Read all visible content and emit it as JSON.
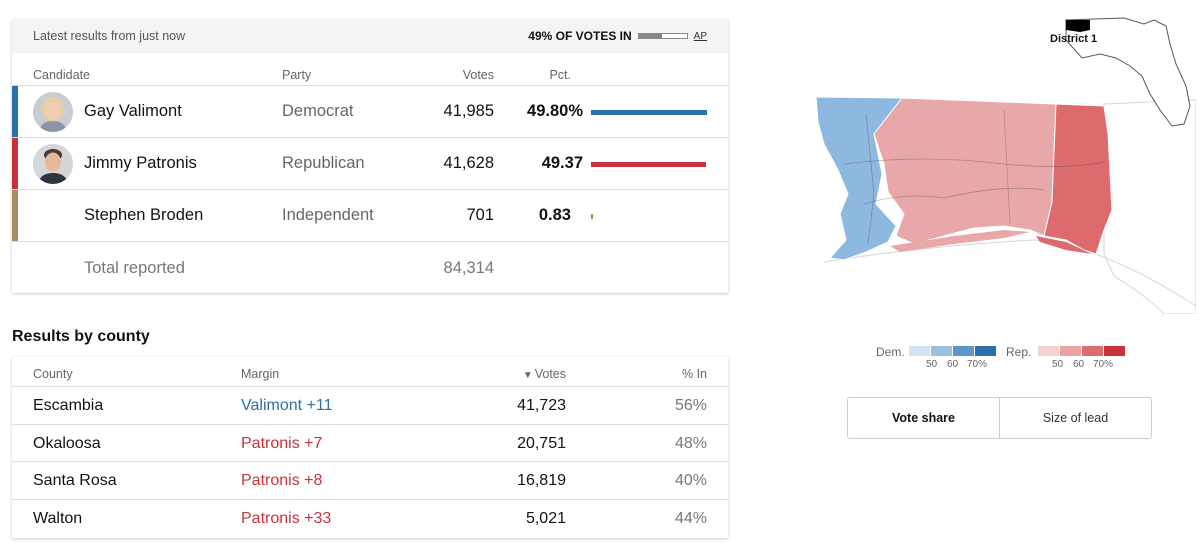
{
  "results": {
    "latest_label": "Latest results from just now",
    "reporting_label": "49% OF VOTES IN",
    "reporting_fraction": 0.49,
    "source_label": "AP",
    "headers": {
      "candidate": "Candidate",
      "party": "Party",
      "votes": "Votes",
      "pct": "Pct."
    },
    "candidates": [
      {
        "name": "Gay Valimont",
        "party": "Democrat",
        "votes": "41,985",
        "pct": "49.80%",
        "pct_value": 49.8,
        "color": "#2d6fa7"
      },
      {
        "name": "Jimmy Patronis",
        "party": "Republican",
        "votes": "41,628",
        "pct": "49.37",
        "pct_value": 49.37,
        "color": "#c8323a"
      },
      {
        "name": "Stephen Broden",
        "party": "Independent",
        "votes": "701",
        "pct": "0.83",
        "pct_value": 0.83,
        "color": "#a98d5e"
      }
    ],
    "total_label": "Total reported",
    "total_votes": "84,314"
  },
  "county": {
    "title": "Results by county",
    "headers": {
      "county": "County",
      "margin": "Margin",
      "votes_arrow": "▼",
      "votes": "Votes",
      "pct_in": "% In"
    },
    "rows": [
      {
        "county": "Escambia",
        "margin": "Valimont +11",
        "party": "dem",
        "votes": "41,723",
        "pct_in": "56%"
      },
      {
        "county": "Okaloosa",
        "margin": "Patronis +7",
        "party": "rep",
        "votes": "20,751",
        "pct_in": "48%"
      },
      {
        "county": "Santa Rosa",
        "margin": "Patronis +8",
        "party": "rep",
        "votes": "16,819",
        "pct_in": "40%"
      },
      {
        "county": "Walton",
        "margin": "Patronis +33",
        "party": "rep",
        "votes": "5,021",
        "pct_in": "44%"
      }
    ]
  },
  "map": {
    "district_label": "District 1",
    "legend": {
      "dem_label": "Dem.",
      "rep_label": "Rep.",
      "ticks": [
        "50",
        "60",
        "70%"
      ],
      "dem_colors": [
        "#d2e4f3",
        "#9dc0e1",
        "#5d95c8",
        "#2d6fa7"
      ],
      "rep_colors": [
        "#f6d0d1",
        "#e9a3a5",
        "#db6c70",
        "#c8323a"
      ]
    },
    "toggle": {
      "active": "Vote share",
      "inactive": "Size of lead"
    }
  }
}
